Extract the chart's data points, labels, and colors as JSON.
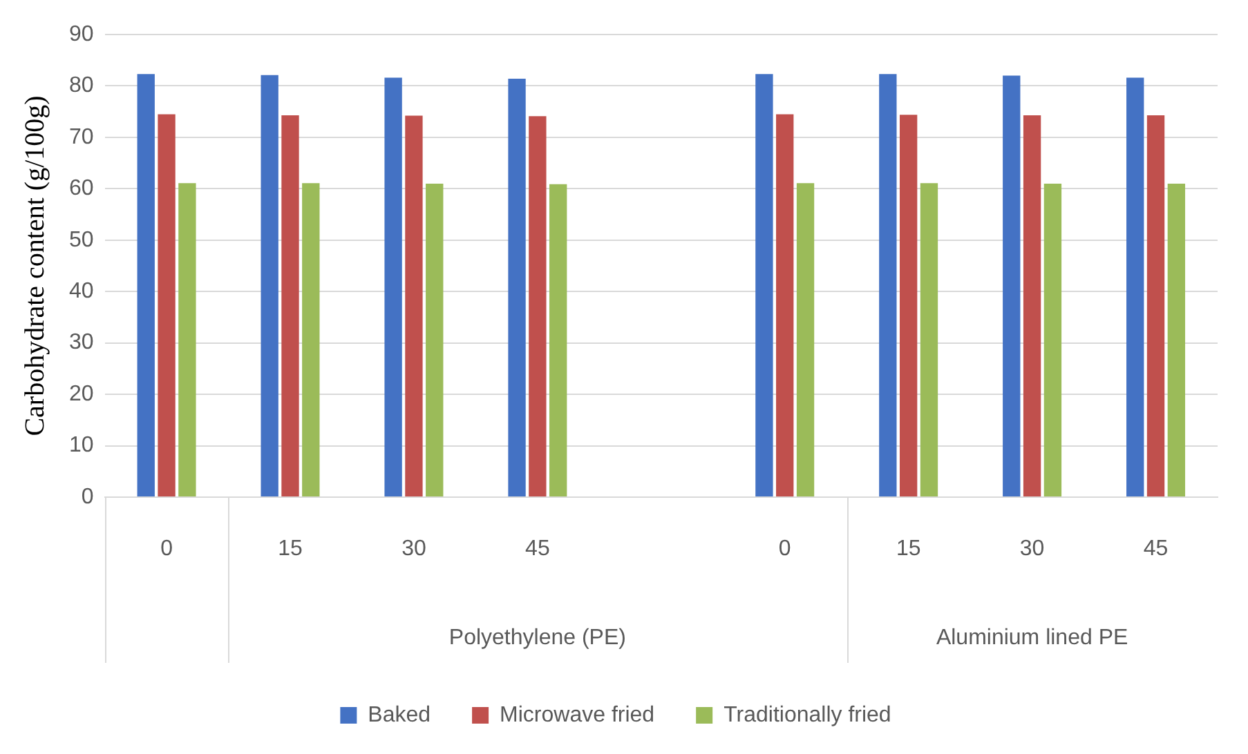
{
  "chart_data": {
    "type": "bar",
    "ylabel": "Carbohydrate content (g/100g)",
    "categories": [
      "0",
      "15",
      "30",
      "45",
      null,
      "0",
      "15",
      "30",
      "45"
    ],
    "series": [
      {
        "name": "Baked",
        "color": "#4472c4",
        "values": [
          82.3,
          82.1,
          81.6,
          81.4,
          null,
          82.3,
          82.3,
          82.0,
          81.6
        ]
      },
      {
        "name": "Microwave fried",
        "color": "#c0504d",
        "values": [
          74.5,
          74.3,
          74.2,
          74.1,
          null,
          74.5,
          74.4,
          74.3,
          74.3
        ]
      },
      {
        "name": "Traditionally fried",
        "color": "#9bbb59",
        "values": [
          61.1,
          61.1,
          61.0,
          60.9,
          null,
          61.1,
          61.1,
          61.0,
          61.0
        ]
      }
    ],
    "ylim": [
      0,
      90
    ],
    "yticks": [
      0,
      10,
      20,
      30,
      40,
      50,
      60,
      70,
      80,
      90
    ],
    "grid": "y",
    "legend": "bottom",
    "annotations": [
      "Polyethylene (PE)",
      "Aluminium lined PE"
    ]
  }
}
